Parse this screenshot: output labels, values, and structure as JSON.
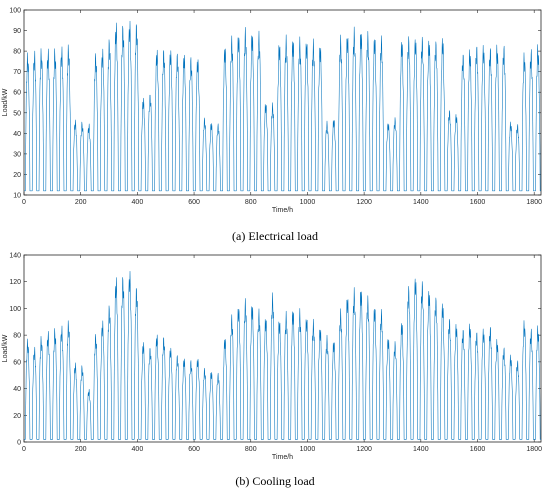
{
  "chart_data": [
    {
      "type": "line",
      "caption": "(a) Electrical load",
      "xlabel": "Time/h",
      "ylabel": "Load/kW",
      "xlim": [
        0,
        1824
      ],
      "ylim": [
        10,
        100
      ],
      "xticks": [
        0,
        200,
        400,
        600,
        800,
        1000,
        1200,
        1400,
        1600,
        1800
      ],
      "yticks": [
        10,
        20,
        30,
        40,
        50,
        60,
        70,
        80,
        90,
        100
      ],
      "grid": false,
      "color": "#0072BD",
      "night_base": 12,
      "daily_peaks": [
        80,
        81,
        82,
        82,
        82,
        83,
        84,
        47,
        46,
        45,
        80,
        82,
        87,
        95,
        94,
        96,
        95,
        58,
        60,
        82,
        82,
        82,
        80,
        80,
        78,
        78,
        48,
        46,
        45,
        84,
        88,
        90,
        92,
        91,
        90,
        56,
        55,
        86,
        88,
        88,
        87,
        87,
        86,
        85,
        46,
        48,
        88,
        90,
        92,
        92,
        90,
        89,
        88,
        46,
        48,
        87,
        88,
        88,
        88,
        87,
        86,
        88,
        52,
        50,
        80,
        82,
        84,
        84,
        83,
        84,
        84,
        46,
        45,
        80,
        82,
        84,
        86,
        84,
        84,
        85,
        44,
        42,
        80,
        82,
        78,
        80,
        80,
        82,
        80,
        46,
        45,
        80,
        82,
        82,
        80,
        76,
        78,
        80,
        44,
        42
      ]
    },
    {
      "type": "line",
      "caption": "(b) Cooling load",
      "xlabel": "Time/h",
      "ylabel": "Load/kW",
      "xlim": [
        0,
        1824
      ],
      "ylim": [
        0,
        140
      ],
      "xticks": [
        0,
        200,
        400,
        600,
        800,
        1000,
        1200,
        1400,
        1600,
        1800
      ],
      "yticks": [
        0,
        20,
        40,
        60,
        80,
        100,
        120,
        140
      ],
      "grid": false,
      "color": "#0072BD",
      "night_base": 2,
      "daily_peaks": [
        78,
        72,
        80,
        84,
        86,
        88,
        92,
        60,
        58,
        40,
        82,
        92,
        104,
        125,
        126,
        130,
        118,
        76,
        72,
        82,
        80,
        72,
        66,
        64,
        62,
        64,
        56,
        54,
        52,
        80,
        96,
        104,
        108,
        106,
        100,
        96,
        112,
        94,
        98,
        102,
        100,
        96,
        92,
        88,
        80,
        78,
        100,
        112,
        116,
        118,
        110,
        104,
        100,
        80,
        76,
        92,
        118,
        126,
        122,
        116,
        110,
        106,
        94,
        90,
        86,
        90,
        84,
        86,
        88,
        78,
        72,
        66,
        62,
        92,
        86,
        88,
        92,
        88,
        80,
        66,
        50,
        48,
        82,
        84,
        80,
        78,
        76,
        72,
        72,
        32,
        26,
        66,
        78,
        84,
        80,
        76,
        74,
        70,
        38,
        48
      ]
    }
  ]
}
